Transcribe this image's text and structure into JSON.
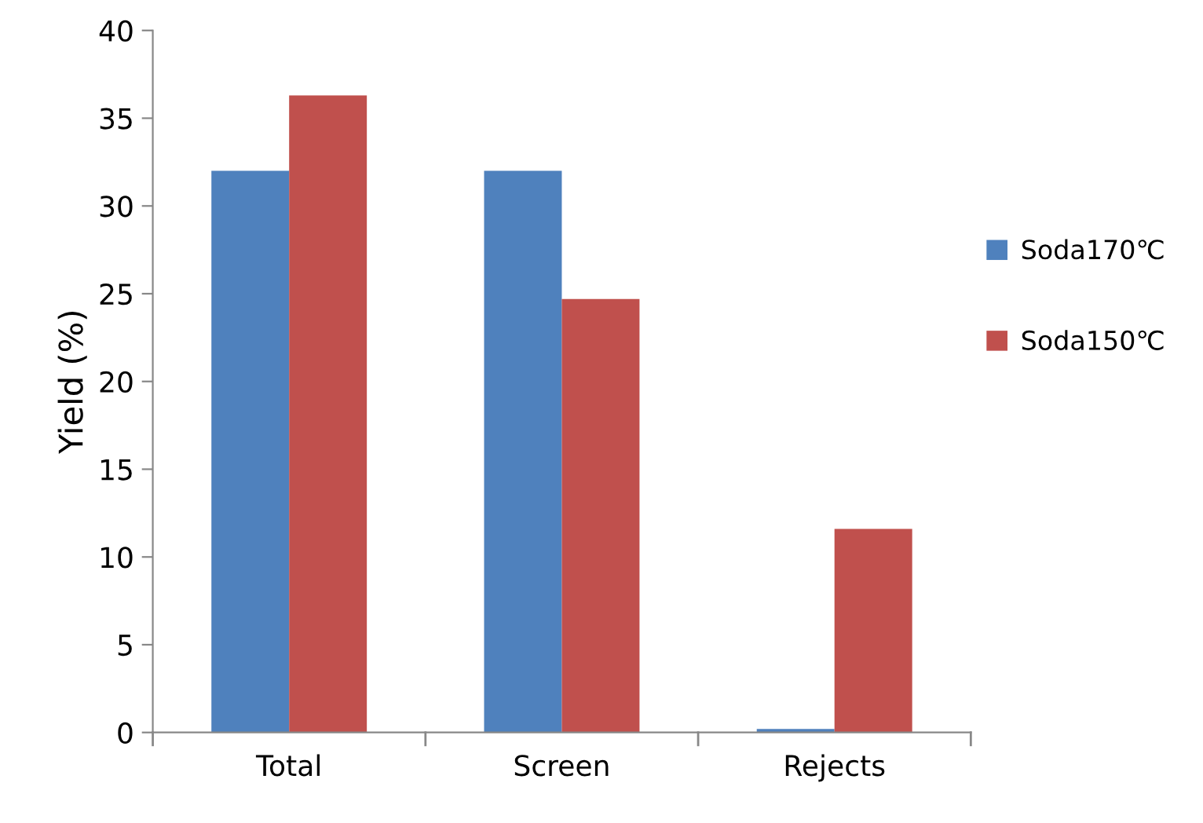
{
  "chart_data": {
    "type": "bar",
    "ylabel": "Yield (%)",
    "categories": [
      "Total",
      "Screen",
      "Rejects"
    ],
    "series": [
      {
        "name": "Soda170℃",
        "color": "#4f81bd",
        "values": [
          32.0,
          32.0,
          0.2
        ]
      },
      {
        "name": "Soda150℃",
        "color": "#c0504d",
        "values": [
          36.3,
          24.7,
          11.6
        ]
      }
    ],
    "ylim": [
      0,
      40
    ],
    "yticks": [
      0,
      5,
      10,
      15,
      20,
      25,
      30,
      35,
      40
    ],
    "legend": "right",
    "grid": false
  }
}
